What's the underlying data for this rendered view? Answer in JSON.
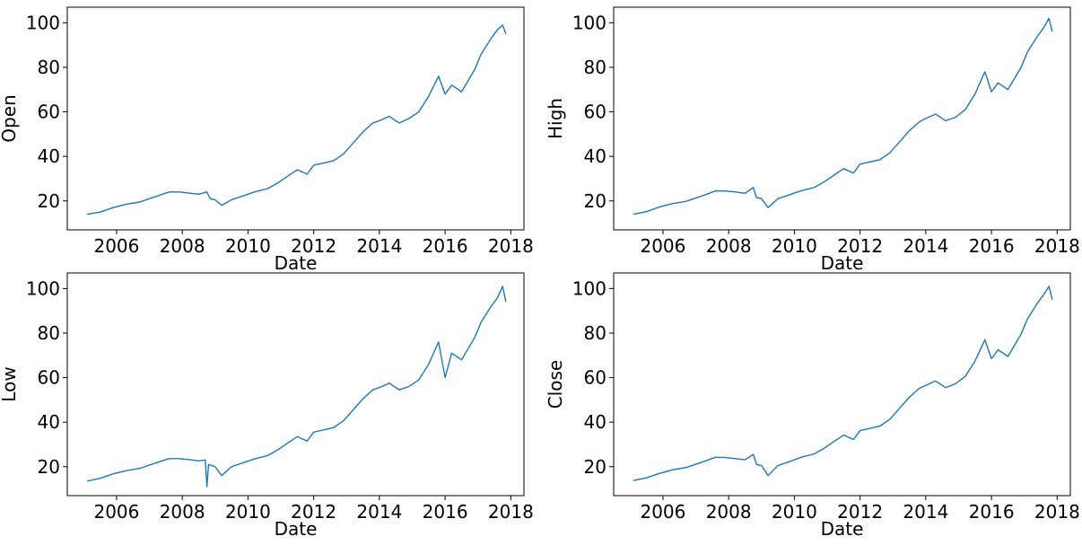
{
  "chart_data": [
    {
      "type": "line",
      "xlabel": "Date",
      "ylabel": "Open",
      "xlim": [
        2004.5,
        2018.4
      ],
      "ylim": [
        7,
        107
      ],
      "xticks": [
        2006,
        2008,
        2010,
        2012,
        2014,
        2016,
        2018
      ],
      "yticks": [
        20,
        40,
        60,
        80,
        100
      ],
      "grid": false,
      "color": "#1f77b4",
      "series": [
        {
          "x": [
            2005.1,
            2005.5,
            2005.9,
            2006.3,
            2006.7,
            2007.0,
            2007.3,
            2007.6,
            2007.9,
            2008.2,
            2008.5,
            2008.75,
            2008.85,
            2009.0,
            2009.2,
            2009.5,
            2009.8,
            2010.2,
            2010.6,
            2010.9,
            2011.2,
            2011.5,
            2011.8,
            2012.0,
            2012.3,
            2012.6,
            2012.9,
            2013.2,
            2013.5,
            2013.8,
            2014.0,
            2014.3,
            2014.6,
            2014.9,
            2015.2,
            2015.5,
            2015.8,
            2016.0,
            2016.2,
            2016.5,
            2016.7,
            2016.9,
            2017.1,
            2017.4,
            2017.6,
            2017.75,
            2017.85
          ],
          "y": [
            14,
            15,
            17,
            18.5,
            19.5,
            21,
            22.5,
            24,
            24,
            23.5,
            23,
            24,
            21,
            20.5,
            18,
            20.5,
            22,
            24,
            25.5,
            28,
            31,
            34,
            32,
            36,
            37,
            38,
            41,
            46,
            51,
            55,
            56,
            58,
            55,
            57,
            60,
            67,
            76,
            68,
            72,
            69,
            74,
            79,
            86,
            93,
            97,
            99,
            95
          ]
        }
      ]
    },
    {
      "type": "line",
      "xlabel": "Date",
      "ylabel": "High",
      "xlim": [
        2004.5,
        2018.4
      ],
      "ylim": [
        7,
        107
      ],
      "xticks": [
        2006,
        2008,
        2010,
        2012,
        2014,
        2016,
        2018
      ],
      "yticks": [
        20,
        40,
        60,
        80,
        100
      ],
      "grid": false,
      "color": "#1f77b4",
      "series": [
        {
          "x": [
            2005.1,
            2005.5,
            2005.9,
            2006.3,
            2006.7,
            2007.0,
            2007.3,
            2007.6,
            2007.9,
            2008.2,
            2008.5,
            2008.75,
            2008.85,
            2009.0,
            2009.2,
            2009.5,
            2009.8,
            2010.2,
            2010.6,
            2010.9,
            2011.2,
            2011.5,
            2011.8,
            2012.0,
            2012.3,
            2012.6,
            2012.9,
            2013.2,
            2013.5,
            2013.8,
            2014.0,
            2014.3,
            2014.6,
            2014.9,
            2015.2,
            2015.5,
            2015.8,
            2016.0,
            2016.2,
            2016.5,
            2016.7,
            2016.9,
            2017.1,
            2017.4,
            2017.6,
            2017.75,
            2017.85
          ],
          "y": [
            14,
            15.2,
            17.3,
            18.8,
            19.8,
            21.3,
            22.8,
            24.5,
            24.4,
            24,
            23.4,
            26,
            21.5,
            21,
            17,
            21,
            22.5,
            24.5,
            26,
            28.5,
            31.5,
            34.5,
            32.5,
            36.5,
            37.5,
            38.5,
            41.5,
            46.5,
            51.5,
            55.5,
            57,
            59,
            56,
            57.5,
            61,
            68,
            78,
            69,
            73,
            70,
            75,
            80,
            87,
            94,
            98,
            102,
            96
          ]
        }
      ]
    },
    {
      "type": "line",
      "xlabel": "Date",
      "ylabel": "Low",
      "xlim": [
        2004.5,
        2018.4
      ],
      "ylim": [
        7,
        107
      ],
      "xticks": [
        2006,
        2008,
        2010,
        2012,
        2014,
        2016,
        2018
      ],
      "yticks": [
        20,
        40,
        60,
        80,
        100
      ],
      "grid": false,
      "color": "#1f77b4",
      "series": [
        {
          "x": [
            2005.1,
            2005.5,
            2005.9,
            2006.3,
            2006.7,
            2007.0,
            2007.3,
            2007.6,
            2007.9,
            2008.2,
            2008.5,
            2008.7,
            2008.75,
            2008.8,
            2009.0,
            2009.2,
            2009.5,
            2009.8,
            2010.2,
            2010.6,
            2010.9,
            2011.2,
            2011.5,
            2011.8,
            2012.0,
            2012.3,
            2012.6,
            2012.9,
            2013.2,
            2013.5,
            2013.8,
            2014.0,
            2014.3,
            2014.6,
            2014.9,
            2015.2,
            2015.5,
            2015.8,
            2016.0,
            2016.2,
            2016.5,
            2016.7,
            2016.9,
            2017.1,
            2017.4,
            2017.6,
            2017.75,
            2017.85
          ],
          "y": [
            13.5,
            14.8,
            16.8,
            18.2,
            19.2,
            20.7,
            22.2,
            23.6,
            23.6,
            23.2,
            22.6,
            23,
            11,
            21,
            20,
            16,
            20,
            21.5,
            23.5,
            25,
            27.5,
            30.5,
            33.5,
            31.5,
            35.5,
            36.5,
            37.5,
            40.5,
            45.5,
            50.5,
            54.5,
            55.5,
            57.5,
            54.5,
            56,
            59,
            66,
            76,
            60,
            71,
            68,
            73,
            78,
            85,
            92,
            96,
            101,
            94
          ]
        }
      ]
    },
    {
      "type": "line",
      "xlabel": "Date",
      "ylabel": "Close",
      "xlim": [
        2004.5,
        2018.4
      ],
      "ylim": [
        7,
        107
      ],
      "xticks": [
        2006,
        2008,
        2010,
        2012,
        2014,
        2016,
        2018
      ],
      "yticks": [
        20,
        40,
        60,
        80,
        100
      ],
      "grid": false,
      "color": "#1f77b4",
      "series": [
        {
          "x": [
            2005.1,
            2005.5,
            2005.9,
            2006.3,
            2006.7,
            2007.0,
            2007.3,
            2007.6,
            2007.9,
            2008.2,
            2008.5,
            2008.75,
            2008.85,
            2009.0,
            2009.2,
            2009.5,
            2009.8,
            2010.2,
            2010.6,
            2010.9,
            2011.2,
            2011.5,
            2011.8,
            2012.0,
            2012.3,
            2012.6,
            2012.9,
            2013.2,
            2013.5,
            2013.8,
            2014.0,
            2014.3,
            2014.6,
            2014.9,
            2015.2,
            2015.5,
            2015.8,
            2016.0,
            2016.2,
            2016.5,
            2016.7,
            2016.9,
            2017.1,
            2017.4,
            2017.6,
            2017.75,
            2017.85
          ],
          "y": [
            13.8,
            15,
            17,
            18.6,
            19.6,
            21.1,
            22.6,
            24.2,
            24.1,
            23.6,
            23.1,
            25.5,
            21,
            20.5,
            16,
            20.5,
            22,
            24.2,
            25.7,
            28.2,
            31.2,
            34.2,
            32.2,
            36.2,
            37.2,
            38.2,
            41.2,
            46.2,
            51.2,
            55.2,
            56.5,
            58.5,
            55.5,
            57.2,
            60.5,
            67.5,
            77,
            68.5,
            72.5,
            69.5,
            74.5,
            79.5,
            86.5,
            93.5,
            97.5,
            101,
            95
          ]
        }
      ]
    }
  ]
}
